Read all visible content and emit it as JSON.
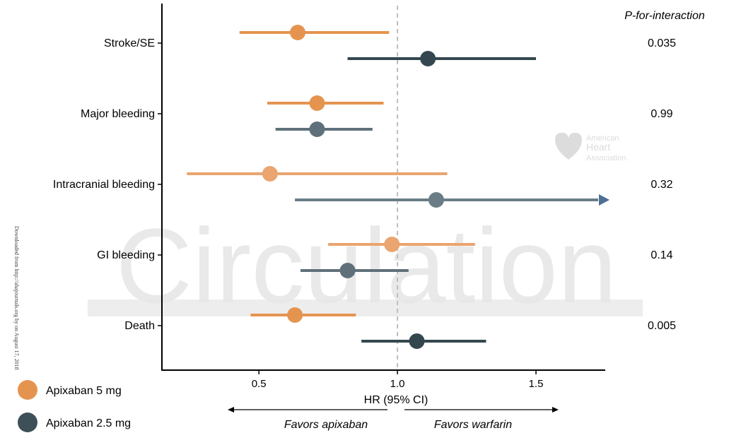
{
  "chart_data": {
    "type": "scatter",
    "subtype": "forest-plot",
    "title": "",
    "xlabel": "HR (95% CI)",
    "xlim": [
      0.15,
      1.75
    ],
    "x_ticks": [
      "0.5",
      "1.0",
      "1.5"
    ],
    "reference_line": 1.0,
    "pvalue_header": "P-for-interaction",
    "favors_left": "Favors apixaban",
    "favors_right": "Favors warfarin",
    "legend_position": "bottom-left",
    "series": [
      {
        "name": "Apixaban 5 mg",
        "color": "#e5944f"
      },
      {
        "name": "Apixaban 2.5 mg",
        "color": "#3d4f57"
      }
    ],
    "outcomes": [
      {
        "label": "Stroke/SE",
        "p_value": "0.035",
        "estimates": [
          {
            "series": 0,
            "hr": 0.64,
            "lower": 0.43,
            "upper": 0.97,
            "color": "#e5944f",
            "arrow": false
          },
          {
            "series": 1,
            "hr": 1.11,
            "lower": 0.82,
            "upper": 1.5,
            "color": "#34474f",
            "arrow": false
          }
        ]
      },
      {
        "label": "Major bleeding",
        "p_value": "0.99",
        "estimates": [
          {
            "series": 0,
            "hr": 0.71,
            "lower": 0.53,
            "upper": 0.95,
            "color": "#e5944f",
            "arrow": false
          },
          {
            "series": 1,
            "hr": 0.71,
            "lower": 0.56,
            "upper": 0.91,
            "color": "#5f707a",
            "arrow": false
          }
        ]
      },
      {
        "label": "Intracranial bleeding",
        "p_value": "0.32",
        "estimates": [
          {
            "series": 0,
            "hr": 0.54,
            "lower": 0.24,
            "upper": 1.18,
            "color": "#eaa570",
            "arrow": false
          },
          {
            "series": 1,
            "hr": 1.14,
            "lower": 0.63,
            "upper": 1.75,
            "color": "#6a7d87",
            "arrow": true
          }
        ]
      },
      {
        "label": "GI bleeding",
        "p_value": "0.14",
        "estimates": [
          {
            "series": 0,
            "hr": 0.98,
            "lower": 0.75,
            "upper": 1.28,
            "color": "#eaa570",
            "arrow": false
          },
          {
            "series": 1,
            "hr": 0.82,
            "lower": 0.65,
            "upper": 1.04,
            "color": "#5f707a",
            "arrow": false
          }
        ]
      },
      {
        "label": "Death",
        "p_value": "0.005",
        "estimates": [
          {
            "series": 0,
            "hr": 0.63,
            "lower": 0.47,
            "upper": 0.85,
            "color": "#e5944f",
            "arrow": false
          },
          {
            "series": 1,
            "hr": 1.07,
            "lower": 0.87,
            "upper": 1.32,
            "color": "#34474f",
            "arrow": false
          }
        ]
      }
    ]
  },
  "watermark": {
    "journal": "Circulation",
    "aha_line1": "American",
    "aha_line2": "Heart",
    "aha_line3": "Association.",
    "download_note": "Downloaded from http://ahajournals.org by on August 17, 2018"
  }
}
